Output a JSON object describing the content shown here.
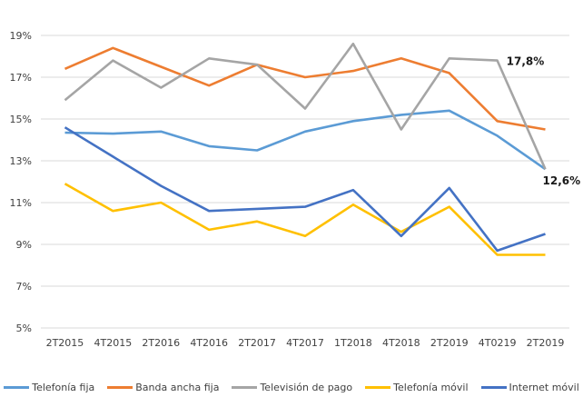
{
  "chart_data": {
    "type": "line",
    "title": "",
    "xlabel": "",
    "ylabel": "",
    "categories": [
      "2T2015",
      "4T2015",
      "2T2016",
      "4T2016",
      "2T2017",
      "4T2017",
      "1T2018",
      "4T2018",
      "2T2019",
      "4T0219",
      "2T2019"
    ],
    "ylim": [
      5,
      19
    ],
    "yticks": [
      5,
      7,
      9,
      11,
      13,
      15,
      17,
      19
    ],
    "ytick_labels": [
      "5%",
      "7%",
      "9%",
      "11%",
      "13%",
      "15%",
      "17%",
      "19%"
    ],
    "grid": true,
    "legend_position": "bottom",
    "series": [
      {
        "name": "Telefonía fija",
        "color": "#5B9BD5",
        "values": [
          14.35,
          14.3,
          14.4,
          13.7,
          13.5,
          14.4,
          14.9,
          15.2,
          15.4,
          14.2,
          12.6
        ]
      },
      {
        "name": "Banda ancha fija",
        "color": "#ED7D31",
        "values": [
          17.4,
          18.4,
          17.5,
          16.6,
          17.6,
          17.0,
          17.3,
          17.9,
          17.2,
          14.9,
          14.5
        ]
      },
      {
        "name": "Televisión de pago",
        "color": "#A5A5A5",
        "values": [
          15.9,
          17.8,
          16.5,
          17.9,
          17.6,
          15.5,
          18.6,
          14.5,
          17.9,
          17.8,
          12.6
        ]
      },
      {
        "name": "Telefonía móvil",
        "color": "#FFC000",
        "values": [
          11.9,
          10.6,
          11.0,
          9.7,
          10.1,
          9.4,
          10.9,
          9.6,
          10.8,
          8.5,
          8.5
        ]
      },
      {
        "name": "Internet móvil",
        "color": "#4472C4",
        "values": [
          14.6,
          13.2,
          11.8,
          10.6,
          10.7,
          10.8,
          11.6,
          9.4,
          11.7,
          8.7,
          9.5
        ]
      }
    ],
    "annotations": [
      {
        "text": "17,8%",
        "series": "Televisión de pago",
        "category_index": 9
      },
      {
        "text": "12,6%",
        "series": "Telefonía fija",
        "category_index": 10
      }
    ]
  }
}
